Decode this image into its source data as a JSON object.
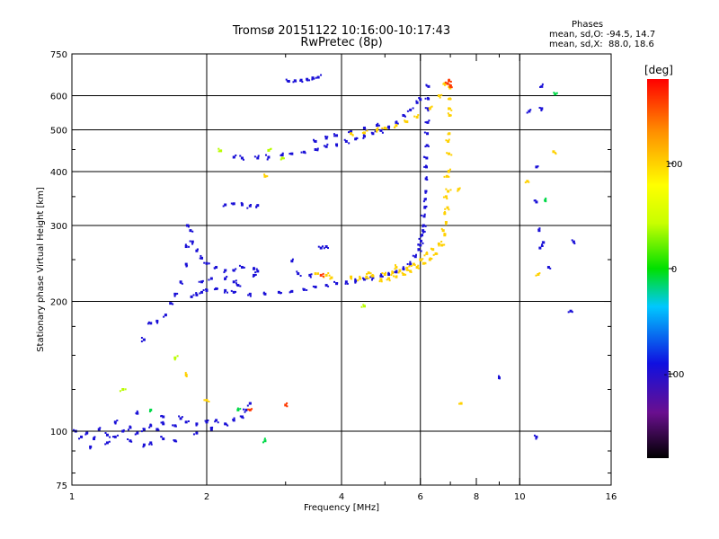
{
  "chart_data": {
    "type": "scatter",
    "title": "Tromsø 20151122 10:16:00-10:17:43",
    "subtitle": "RwPretec (8p)",
    "xlabel": "Frequency [MHz]",
    "ylabel": "Stationary phase Virtual Height [km]",
    "xscale": "log",
    "yscale": "log",
    "xlim": [
      1,
      16
    ],
    "ylim": [
      75,
      750
    ],
    "x_ticks": [
      1,
      2,
      4,
      6,
      8,
      10,
      16
    ],
    "x_tick_labels": [
      "1",
      "2",
      "4",
      "6",
      "8",
      "10",
      "16"
    ],
    "x_grid": [
      2,
      4,
      6,
      10
    ],
    "x_minor_ticks": [
      3,
      5,
      7,
      9
    ],
    "y_ticks": [
      75,
      100,
      200,
      300,
      400,
      500,
      600,
      750
    ],
    "y_tick_labels": [
      "75",
      "100",
      "200",
      "300",
      "400",
      "500",
      "600",
      "750"
    ],
    "y_minor_ticks": [
      80,
      90,
      125,
      150,
      175,
      250,
      350,
      450
    ],
    "grid": true,
    "legend": {
      "title": "Phases",
      "lines": [
        "mean, sd,O: -94.5, 14.7",
        "mean, sd,X:  88.0, 18.6"
      ],
      "placement": "top-right"
    },
    "colorbar": {
      "label": "[deg]",
      "range": [
        -180,
        180
      ],
      "tick_values": [
        100,
        0,
        -100
      ],
      "tick_labels": [
        "100",
        "0",
        "-100"
      ],
      "colormap": "rainbow"
    },
    "series": [
      {
        "phase_deg": -95,
        "points": [
          [
            1.02,
            100
          ],
          [
            1.05,
            97
          ],
          [
            1.08,
            99
          ],
          [
            1.12,
            96
          ],
          [
            1.15,
            101
          ],
          [
            1.2,
            98
          ],
          [
            1.25,
            97
          ],
          [
            1.3,
            100
          ],
          [
            1.35,
            102
          ],
          [
            1.4,
            99
          ],
          [
            1.45,
            101
          ],
          [
            1.5,
            103
          ],
          [
            1.55,
            101
          ],
          [
            1.6,
            104
          ],
          [
            1.7,
            103
          ],
          [
            1.8,
            105
          ],
          [
            1.9,
            104
          ],
          [
            2.0,
            105
          ],
          [
            2.1,
            106
          ],
          [
            2.2,
            104
          ],
          [
            2.3,
            106
          ],
          [
            2.4,
            108
          ],
          [
            2.45,
            112
          ],
          [
            2.5,
            116
          ],
          [
            1.1,
            92
          ],
          [
            1.2,
            94
          ],
          [
            1.35,
            95
          ],
          [
            1.5,
            94
          ],
          [
            1.6,
            96
          ],
          [
            1.25,
            105
          ],
          [
            1.4,
            110
          ],
          [
            1.6,
            108
          ],
          [
            1.75,
            107
          ],
          [
            2.05,
            101
          ],
          [
            1.9,
            99
          ],
          [
            1.45,
            93
          ],
          [
            1.7,
            95
          ],
          [
            1.45,
            163
          ],
          [
            1.5,
            178
          ],
          [
            1.55,
            180
          ],
          [
            1.62,
            186
          ],
          [
            1.66,
            198
          ],
          [
            1.7,
            208
          ],
          [
            1.75,
            222
          ],
          [
            1.8,
            244
          ],
          [
            1.8,
            268
          ],
          [
            1.81,
            300
          ],
          [
            1.84,
            292
          ],
          [
            1.86,
            275
          ],
          [
            1.9,
            262
          ],
          [
            1.95,
            252
          ],
          [
            2.0,
            245
          ],
          [
            2.1,
            240
          ],
          [
            2.2,
            236
          ],
          [
            2.3,
            236
          ],
          [
            2.4,
            240
          ],
          [
            2.55,
            238
          ],
          [
            2.6,
            235
          ],
          [
            1.85,
            205
          ],
          [
            1.9,
            207
          ],
          [
            1.95,
            210
          ],
          [
            2.0,
            212
          ],
          [
            2.1,
            214
          ],
          [
            2.2,
            212
          ],
          [
            2.3,
            210
          ],
          [
            2.5,
            208
          ],
          [
            2.7,
            208
          ],
          [
            2.9,
            210
          ],
          [
            3.1,
            211
          ],
          [
            3.3,
            213
          ],
          [
            3.5,
            216
          ],
          [
            3.7,
            218
          ],
          [
            3.9,
            220
          ],
          [
            4.1,
            222
          ],
          [
            4.3,
            223
          ],
          [
            4.5,
            225
          ],
          [
            4.7,
            227
          ],
          [
            4.9,
            229
          ],
          [
            5.1,
            231
          ],
          [
            5.3,
            234
          ],
          [
            5.5,
            238
          ],
          [
            5.7,
            244
          ],
          [
            5.85,
            254
          ],
          [
            5.95,
            264
          ],
          [
            6.02,
            276
          ],
          [
            6.08,
            292
          ],
          [
            6.12,
            315
          ],
          [
            6.15,
            345
          ],
          [
            6.18,
            385
          ],
          [
            6.2,
            430
          ],
          [
            6.22,
            490
          ],
          [
            6.24,
            560
          ],
          [
            6.26,
            630
          ],
          [
            6.0,
            270
          ],
          [
            6.05,
            285
          ],
          [
            6.1,
            300
          ],
          [
            6.14,
            330
          ],
          [
            6.17,
            360
          ],
          [
            6.19,
            410
          ],
          [
            6.21,
            460
          ],
          [
            6.23,
            520
          ],
          [
            6.25,
            590
          ],
          [
            1.95,
            222
          ],
          [
            2.05,
            226
          ],
          [
            2.2,
            226
          ],
          [
            2.3,
            222
          ],
          [
            2.35,
            218
          ],
          [
            2.55,
            230
          ],
          [
            2.2,
            335
          ],
          [
            2.3,
            337
          ],
          [
            2.4,
            335
          ],
          [
            2.5,
            333
          ],
          [
            2.6,
            334
          ],
          [
            2.3,
            432
          ],
          [
            2.4,
            430
          ],
          [
            2.6,
            430
          ],
          [
            2.75,
            432
          ],
          [
            2.95,
            437
          ],
          [
            3.1,
            440
          ],
          [
            3.3,
            444
          ],
          [
            3.5,
            450
          ],
          [
            3.7,
            457
          ],
          [
            3.9,
            462
          ],
          [
            4.1,
            470
          ],
          [
            4.3,
            476
          ],
          [
            4.5,
            483
          ],
          [
            4.7,
            490
          ],
          [
            4.9,
            498
          ],
          [
            5.1,
            508
          ],
          [
            5.3,
            520
          ],
          [
            5.5,
            540
          ],
          [
            5.7,
            556
          ],
          [
            5.9,
            578
          ],
          [
            6.0,
            588
          ],
          [
            3.5,
            470
          ],
          [
            3.7,
            478
          ],
          [
            3.9,
            485
          ],
          [
            4.2,
            495
          ],
          [
            4.5,
            505
          ],
          [
            4.8,
            512
          ],
          [
            3.05,
            648
          ],
          [
            3.15,
            650
          ],
          [
            3.25,
            652
          ],
          [
            3.35,
            655
          ],
          [
            3.45,
            660
          ],
          [
            3.55,
            662
          ],
          [
            3.2,
            232
          ],
          [
            3.4,
            230
          ],
          [
            3.6,
            266
          ],
          [
            3.7,
            268
          ],
          [
            3.1,
            248
          ],
          [
            10.5,
            552
          ],
          [
            11.2,
            630
          ],
          [
            11.2,
            560
          ],
          [
            10.9,
            410
          ],
          [
            10.9,
            340
          ],
          [
            11.05,
            292
          ],
          [
            11.3,
            274
          ],
          [
            13.2,
            275
          ],
          [
            11.1,
            266
          ],
          [
            9.0,
            133
          ],
          [
            10.9,
            97
          ],
          [
            11.6,
            240
          ],
          [
            13.0,
            190
          ]
        ]
      },
      {
        "phase_deg": 100,
        "points": [
          [
            4.9,
            225
          ],
          [
            5.1,
            226
          ],
          [
            5.3,
            228
          ],
          [
            5.5,
            231
          ],
          [
            5.7,
            235
          ],
          [
            5.9,
            240
          ],
          [
            6.1,
            245
          ],
          [
            6.3,
            250
          ],
          [
            6.5,
            258
          ],
          [
            6.7,
            270
          ],
          [
            6.8,
            285
          ],
          [
            6.85,
            305
          ],
          [
            6.9,
            330
          ],
          [
            6.92,
            360
          ],
          [
            6.94,
            400
          ],
          [
            6.95,
            440
          ],
          [
            6.96,
            490
          ],
          [
            6.97,
            540
          ],
          [
            6.98,
            590
          ],
          [
            6.99,
            625
          ],
          [
            5.0,
            231
          ],
          [
            5.2,
            233
          ],
          [
            5.4,
            236
          ],
          [
            5.6,
            239
          ],
          [
            5.8,
            244
          ],
          [
            6.0,
            250
          ],
          [
            6.2,
            258
          ],
          [
            6.4,
            264
          ],
          [
            6.6,
            272
          ],
          [
            6.75,
            292
          ],
          [
            6.8,
            320
          ],
          [
            6.85,
            350
          ],
          [
            6.88,
            390
          ],
          [
            6.92,
            470
          ],
          [
            6.95,
            560
          ],
          [
            4.4,
            226
          ],
          [
            4.55,
            228
          ],
          [
            4.7,
            229
          ],
          [
            4.6,
            233
          ],
          [
            5.3,
            240
          ],
          [
            4.2,
            228
          ],
          [
            4.2,
            490
          ],
          [
            4.5,
            492
          ],
          [
            4.8,
            500
          ],
          [
            5.0,
            505
          ],
          [
            5.3,
            512
          ],
          [
            5.6,
            522
          ],
          [
            5.9,
            535
          ],
          [
            6.3,
            560
          ],
          [
            6.6,
            600
          ],
          [
            6.8,
            640
          ],
          [
            3.5,
            232
          ],
          [
            3.7,
            230
          ],
          [
            3.8,
            227
          ],
          [
            10.4,
            380
          ],
          [
            7.3,
            364
          ],
          [
            11.9,
            445
          ],
          [
            11.0,
            231
          ],
          [
            7.4,
            116
          ],
          [
            2.7,
            390
          ],
          [
            1.8,
            135
          ],
          [
            2.0,
            118
          ]
        ]
      },
      {
        "phase_deg": 40,
        "points": [
          [
            2.15,
            447
          ],
          [
            2.75,
            448
          ],
          [
            4.5,
            195
          ],
          [
            2.95,
            430
          ],
          [
            1.7,
            148
          ],
          [
            1.3,
            125
          ]
        ]
      },
      {
        "phase_deg": 160,
        "points": [
          [
            6.9,
            640
          ],
          [
            6.95,
            650
          ],
          [
            7.0,
            630
          ],
          [
            3.0,
            115
          ],
          [
            2.5,
            112
          ],
          [
            3.6,
            230
          ]
        ]
      },
      {
        "phase_deg": -10,
        "points": [
          [
            1.5,
            112
          ],
          [
            2.35,
            112
          ],
          [
            2.7,
            95
          ],
          [
            11.4,
            343
          ],
          [
            12.0,
            605
          ]
        ]
      }
    ]
  }
}
